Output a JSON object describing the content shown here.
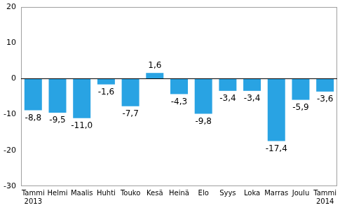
{
  "chart_data": {
    "type": "bar",
    "categories": [
      [
        "Tammi",
        "2013"
      ],
      "Helmi",
      "Maalis",
      "Huhti",
      "Touko",
      "Kesä",
      "Heinä",
      "Elo",
      "Syys",
      "Loka",
      "Marras",
      "Joulu",
      [
        "Tammi",
        "2014"
      ]
    ],
    "values": [
      -8.8,
      -9.5,
      -11.0,
      -1.6,
      -7.7,
      1.6,
      -4.3,
      -9.8,
      -3.4,
      -3.4,
      -17.4,
      -5.9,
      -3.6
    ],
    "value_labels": [
      "-8,8",
      "-9,5",
      "-11,0",
      "-1,6",
      "-7,7",
      "1,6",
      "-4,3",
      "-9,8",
      "-3,4",
      "-3,4",
      "-17,4",
      "-5,9",
      "-3,6"
    ],
    "data_labels": true,
    "color": "#29a3e3",
    "ylim": [
      -30,
      20
    ],
    "yticks": [
      -30,
      -20,
      -10,
      0,
      10,
      20
    ],
    "grid": false
  }
}
